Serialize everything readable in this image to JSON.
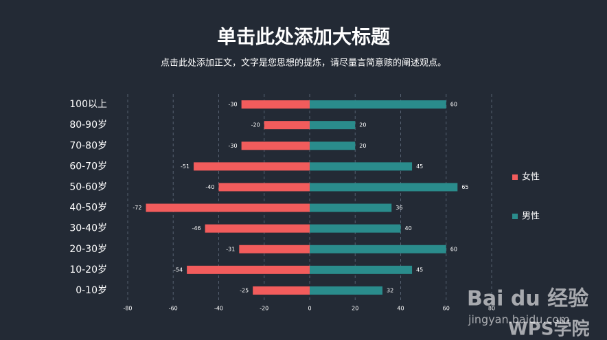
{
  "chart_data": {
    "type": "bar",
    "orientation": "horizontal",
    "title": "单击此处添加大标题",
    "subtitle": "点击此处添加正文，文字是您思想的提炼，请尽量言简意赅的阐述观点。",
    "categories": [
      "100以上",
      "80-90岁",
      "70-80岁",
      "60-70岁",
      "50-60岁",
      "40-50岁",
      "30-40岁",
      "20-30岁",
      "10-20岁",
      "0-10岁"
    ],
    "series": [
      {
        "name": "女性",
        "color": "#f25c5c",
        "values": [
          -30,
          -20,
          -30,
          -51,
          -40,
          -72,
          -46,
          -31,
          -54,
          -25
        ]
      },
      {
        "name": "男性",
        "color": "#2a8c8c",
        "values": [
          60,
          20,
          20,
          45,
          65,
          36,
          40,
          60,
          45,
          32
        ]
      }
    ],
    "xlim": [
      -80,
      80
    ],
    "xticks": [
      -80,
      -60,
      -40,
      -20,
      0,
      20,
      40,
      60,
      80
    ],
    "grid": true,
    "legend": "right",
    "watermark": [
      "Bai du 经验",
      "jingyan.baidu.com",
      "WPS学院"
    ]
  }
}
